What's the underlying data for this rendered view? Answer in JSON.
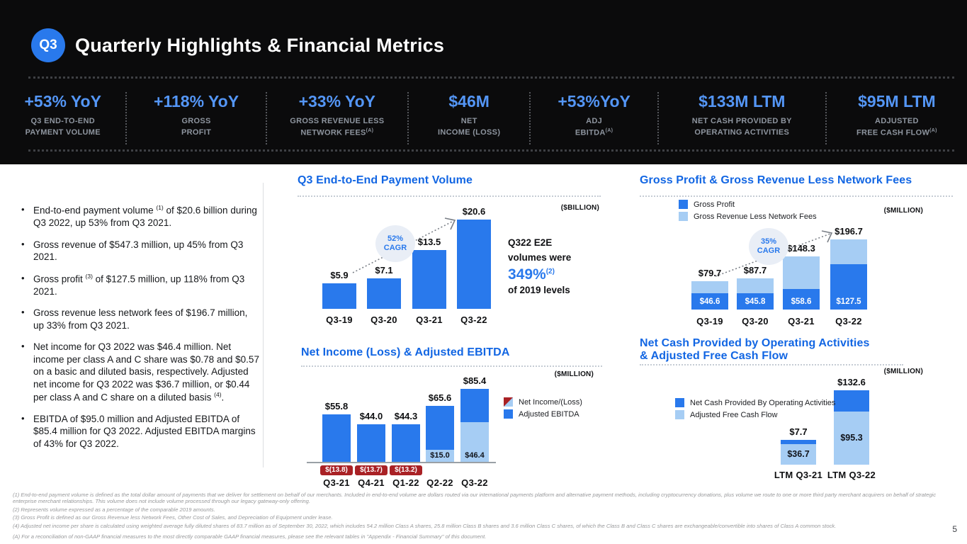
{
  "header": {
    "badge": "Q3",
    "title": "Quarterly Highlights & Financial Metrics"
  },
  "colors": {
    "accent_blue": "#1266E3",
    "bar_blue": "#2979EC",
    "light_blue": "#A6CDF4",
    "metric_blue": "#5496F6",
    "negative_red": "#A92125"
  },
  "metrics": [
    {
      "value": "+53% YoY",
      "label_lines": [
        "Q3 END-TO-END",
        "PAYMENT VOLUME"
      ],
      "sup": ""
    },
    {
      "value": "+118% YoY",
      "label_lines": [
        "GROSS",
        "PROFIT"
      ],
      "sup": ""
    },
    {
      "value": "+33% YoY",
      "label_lines": [
        "GROSS REVENUE LESS",
        "NETWORK FEES"
      ],
      "sup": "(A)"
    },
    {
      "value": "$46M",
      "label_lines": [
        "NET",
        "INCOME (LOSS)"
      ],
      "sup": ""
    },
    {
      "value": "+53%YoY",
      "label_lines": [
        "ADJ",
        "EBITDA"
      ],
      "sup": "(A)"
    },
    {
      "value": "$133M LTM",
      "label_lines": [
        "NET CASH PROVIDED BY",
        "OPERATING ACTIVITIES"
      ],
      "sup": ""
    },
    {
      "value": "$95M LTM",
      "label_lines": [
        "ADJUSTED",
        "FREE CASH FLOW"
      ],
      "sup": "(A)"
    }
  ],
  "bullets": [
    [
      "End-to-end payment volume ",
      {
        "sup": "(1)"
      },
      " of $20.6 billion during Q3 2022, up 53% from Q3 2021."
    ],
    [
      "Gross revenue of $547.3 million, up 45% from Q3 2021."
    ],
    [
      "Gross profit ",
      {
        "sup": "(3)"
      },
      " of $127.5 million, up 118% from Q3 2021."
    ],
    [
      "Gross revenue less network fees of $196.7 million, up 33% from Q3 2021."
    ],
    [
      "Net income for Q3 2022 was $46.4 million. Net income per class A and C share was $0.78 and $0.57 on a basic and diluted basis, respectively. Adjusted net income for Q3 2022 was $36.7 million, or $0.44 per class A and C share on a diluted basis ",
      {
        "sup": "(4)"
      },
      "."
    ],
    [
      "EBITDA of $95.0 million and Adjusted EBITDA of $85.4 million for Q3 2022. Adjusted EBITDA margins of 43% for Q3 2022."
    ]
  ],
  "chart_data": [
    {
      "type": "bar",
      "title": "Q3 End-to-End Payment Volume",
      "unit": "($BILLION)",
      "categories": [
        "Q3-19",
        "Q3-20",
        "Q3-21",
        "Q3-22"
      ],
      "values": [
        5.9,
        7.1,
        13.5,
        20.6
      ],
      "value_labels": [
        "$5.9",
        "$7.1",
        "$13.5",
        "$20.6"
      ],
      "ylim": [
        0,
        20.6
      ],
      "cagr": "52%",
      "cagr_label": "CAGR",
      "note": {
        "line1": "Q322 E2E",
        "line2": "volumes were",
        "big": "349%",
        "big_sup": "(2)",
        "tail": "of 2019 levels"
      }
    },
    {
      "type": "stacked-bar",
      "title": "Gross Profit & Gross Revenue Less Network Fees",
      "unit": "($MILLION)",
      "categories": [
        "Q3-19",
        "Q3-20",
        "Q3-21",
        "Q3-22"
      ],
      "series": [
        {
          "name": "Gross Profit",
          "values": [
            46.6,
            45.8,
            58.6,
            127.5
          ],
          "labels": [
            "$46.6",
            "$45.8",
            "$58.6",
            "$127.5"
          ]
        },
        {
          "name": "Gross Revenue Less Network Fees",
          "values": [
            79.7,
            87.7,
            148.3,
            196.7
          ],
          "labels": [
            "$79.7",
            "$87.7",
            "$148.3",
            "$196.7"
          ],
          "role": "total"
        }
      ],
      "ylim": [
        0,
        196.7
      ],
      "cagr": "35%",
      "cagr_label": "CAGR"
    },
    {
      "type": "bar-with-negatives",
      "title": "Net Income (Loss) & Adjusted EBITDA",
      "unit": "($MILLION)",
      "categories": [
        "Q3-21",
        "Q4-21",
        "Q1-22",
        "Q2-22",
        "Q3-22"
      ],
      "series": [
        {
          "name": "Net Income/(Loss)",
          "values": [
            -13.8,
            -13.7,
            -13.2,
            15.0,
            46.4
          ],
          "labels": [
            "$(13.8)",
            "$(13.7)",
            "$(13.2)",
            "$15.0",
            "$46.4"
          ]
        },
        {
          "name": "Adjusted EBITDA",
          "values": [
            55.8,
            44.0,
            44.3,
            65.6,
            85.4
          ],
          "labels": [
            "$55.8",
            "$44.0",
            "$44.3",
            "$65.6",
            "$85.4"
          ]
        }
      ],
      "ylim": [
        -13.8,
        85.4
      ]
    },
    {
      "type": "stacked-bar",
      "title": "Net Cash Provided by Operating Activities\n& Adjusted Free Cash Flow",
      "unit": "($MILLION)",
      "categories": [
        "LTM Q3-21",
        "LTM Q3-22"
      ],
      "series": [
        {
          "name": "Net Cash Provided By Operating Activities",
          "values": [
            7.7,
            132.6
          ],
          "labels": [
            "$7.7",
            "$132.6"
          ]
        },
        {
          "name": "Adjusted Free Cash Flow",
          "values": [
            36.7,
            95.3
          ],
          "labels": [
            "$36.7",
            "$95.3"
          ]
        }
      ],
      "ylim": [
        0,
        132.6
      ]
    }
  ],
  "footnotes": [
    "(1) End-to-end payment volume is defined as the total dollar amount of payments that we deliver for settlement on behalf of our merchants. Included in end-to-end volume are dollars routed via our international payments platform and alternative payment methods, including cryptocurrency donations, plus volume we route to one or more third party merchant acquirers on behalf of strategic enterprise merchant relationships. This volume does not include volume processed through our legacy gateway-only offering.",
    "(2) Represents volume expressed as a percentage of the comparable 2019 amounts.",
    "(3) Gross Profit is defined as our Gross Revenue less Network Fees, Other Cost of Sales, and Depreciation of Equipment under lease.",
    "(4) Adjusted net income per share is calculated using weighted average fully diluted shares of 83.7 million as of September 30, 2022, which includes 54.2 million Class A shares, 25.8 million Class B shares and 3.6 million Class C shares, of which the Class B and Class C shares are exchangeable/convertible into shares of Class A common stock.",
    "(A) For a reconciliation of non-GAAP financial measures to the most directly comparable GAAP financial measures, please see the relevant tables in \"Appendix - Financial Summary\" of this document."
  ],
  "page_number": "5"
}
